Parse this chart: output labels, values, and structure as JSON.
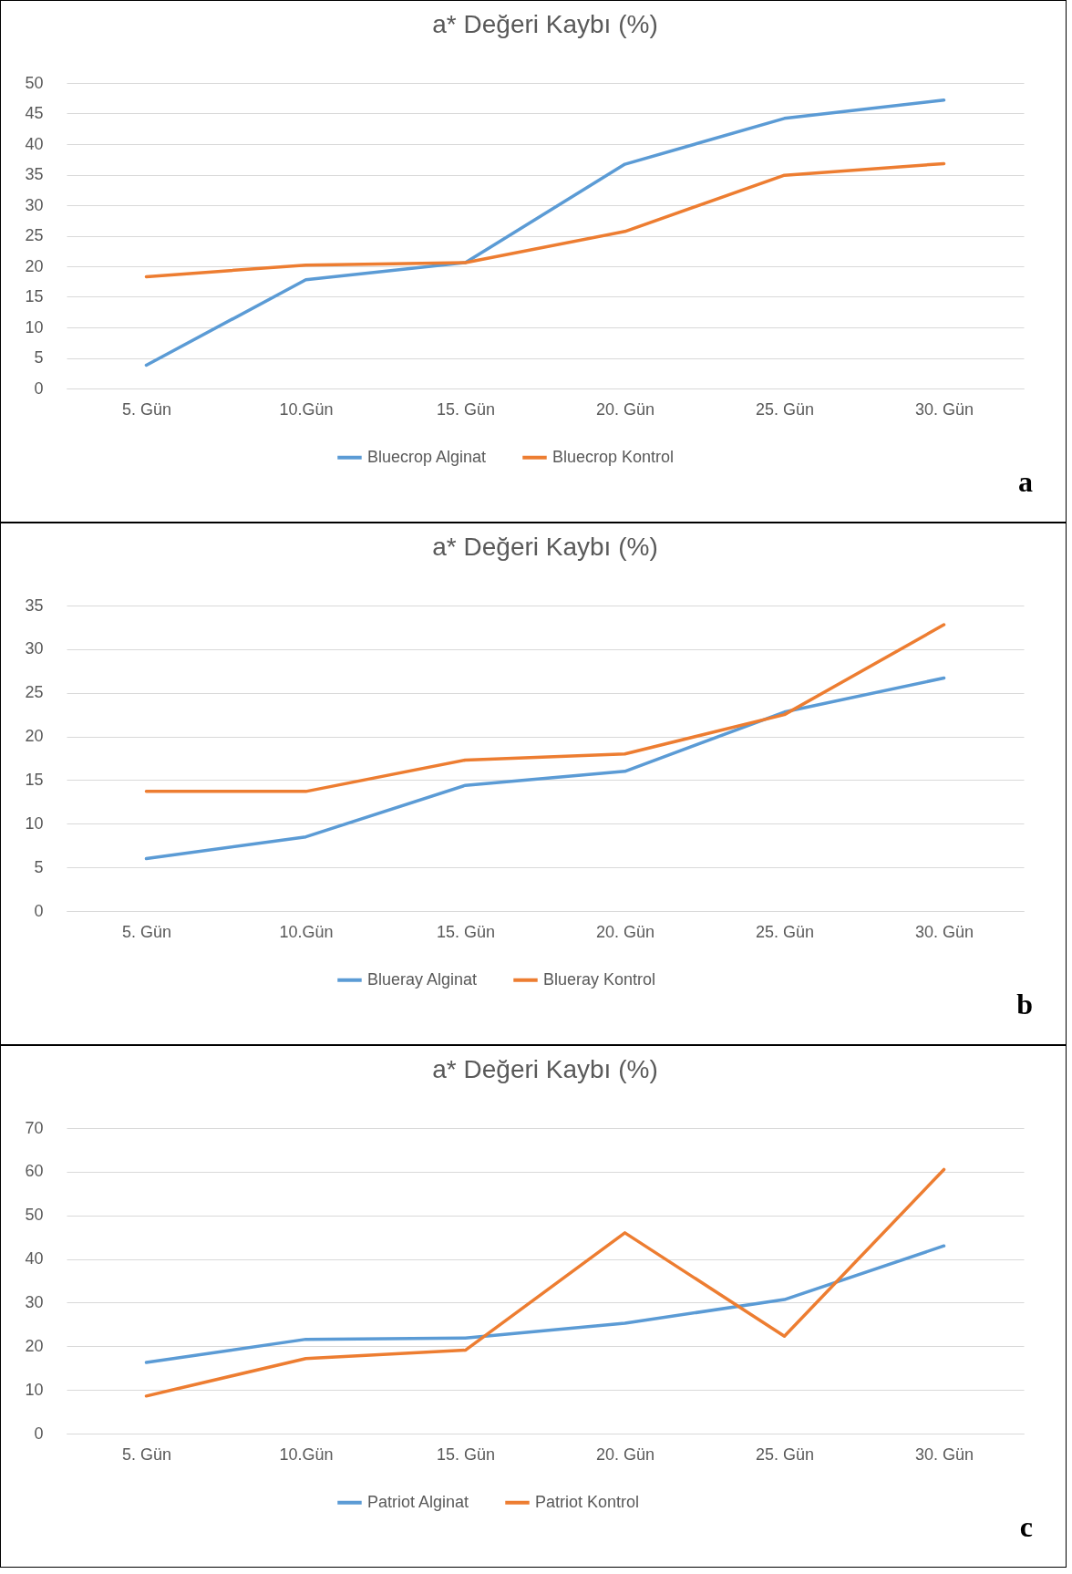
{
  "chart_data": [
    {
      "type": "line",
      "title": "a* Değeri Kaybı (%)",
      "categories": [
        "5. Gün",
        "10.Gün",
        "15. Gün",
        "20. Gün",
        "25. Gün",
        "30. Gün"
      ],
      "series": [
        {
          "name": "Bluecrop Alginat",
          "color": "#5b9bd5",
          "values": [
            3.8,
            17.8,
            20.6,
            36.7,
            44.2,
            47.2
          ]
        },
        {
          "name": "Bluecrop Kontrol",
          "color": "#ed7d31",
          "values": [
            18.3,
            20.2,
            20.6,
            25.7,
            34.9,
            36.8
          ]
        }
      ],
      "ylim": [
        0,
        50
      ],
      "yticks": [
        0,
        5,
        10,
        15,
        20,
        25,
        30,
        35,
        40,
        45,
        50
      ],
      "grid": "y",
      "legend": "bottom",
      "annotations": [
        "a"
      ]
    },
    {
      "type": "line",
      "title": "a* Değeri Kaybı (%)",
      "categories": [
        "5. Gün",
        "10.Gün",
        "15. Gün",
        "20. Gün",
        "25. Gün",
        "30. Gün"
      ],
      "series": [
        {
          "name": "Blueray Alginat",
          "color": "#5b9bd5",
          "values": [
            6.0,
            8.5,
            14.4,
            16.0,
            22.8,
            26.7
          ]
        },
        {
          "name": "Blueray Kontrol",
          "color": "#ed7d31",
          "values": [
            13.7,
            13.7,
            17.3,
            18.0,
            22.5,
            32.8
          ]
        }
      ],
      "ylim": [
        0,
        35
      ],
      "yticks": [
        0,
        5,
        10,
        15,
        20,
        25,
        30,
        35
      ],
      "grid": "y",
      "legend": "bottom",
      "annotations": [
        "b"
      ]
    },
    {
      "type": "line",
      "title": "a* Değeri Kaybı (%)",
      "categories": [
        "5. Gün",
        "10.Gün",
        "15. Gün",
        "20. Gün",
        "25. Gün",
        "30. Gün"
      ],
      "series": [
        {
          "name": "Patriot Alginat",
          "color": "#5b9bd5",
          "values": [
            16.3,
            21.6,
            21.9,
            25.3,
            30.7,
            43.0
          ]
        },
        {
          "name": "Patriot Kontrol",
          "color": "#ed7d31",
          "values": [
            8.6,
            17.2,
            19.1,
            46.0,
            22.3,
            60.5
          ]
        }
      ],
      "ylim": [
        0,
        70
      ],
      "yticks": [
        0,
        10,
        20,
        30,
        40,
        50,
        60,
        70
      ],
      "grid": "y",
      "legend": "bottom",
      "annotations": [
        "c"
      ]
    }
  ]
}
